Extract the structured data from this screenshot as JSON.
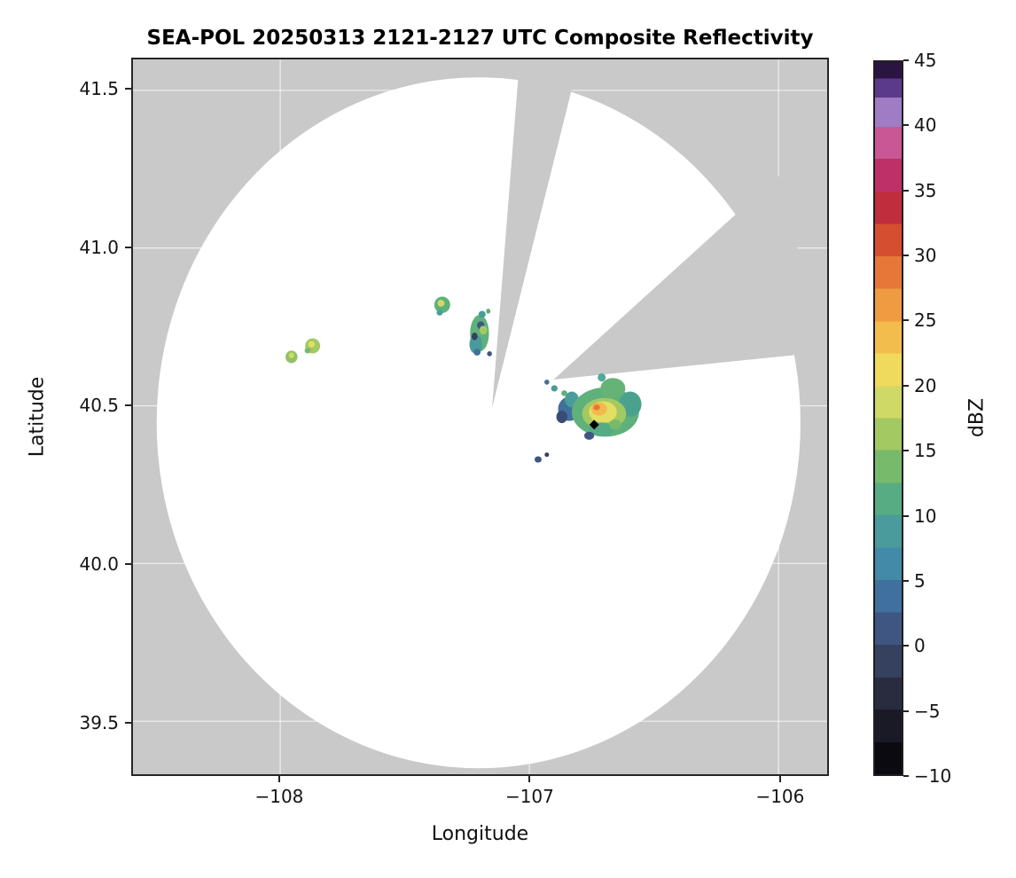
{
  "chart_data": {
    "type": "heatmap",
    "title": "SEA-POL 20250313 2121-2127 UTC Composite Reflectivity",
    "xlabel": "Longitude",
    "ylabel": "Latitude",
    "xlim": [
      -108.591,
      -105.805
    ],
    "ylim": [
      39.332,
      41.598
    ],
    "xticks": [
      -108,
      -107,
      -106
    ],
    "yticks": [
      39.5,
      40.0,
      40.5,
      41.0,
      41.5
    ],
    "grid": true,
    "grid_color": "#ffffff",
    "background_color": "#ffffff",
    "no_data_color": "#c9c9c9",
    "radar_coverage": {
      "center": [
        -107.204,
        40.446
      ],
      "radius_lon_deg": 1.292,
      "radius_lat_deg": 1.095
    },
    "blocked_sectors": [
      {
        "name": "blocked-sector-north",
        "polygon": [
          [
            -107.15,
            40.493
          ],
          [
            -107.037,
            41.62
          ],
          [
            -106.793,
            41.62
          ]
        ]
      },
      {
        "name": "blocked-sector-northeast",
        "polygon": [
          [
            -106.903,
            40.583
          ],
          [
            -106.0,
            41.23
          ],
          [
            -105.82,
            40.67
          ]
        ]
      }
    ],
    "site_marker": {
      "lon": -106.74,
      "lat": 40.44,
      "symbol": "diamond",
      "color": "#000000"
    },
    "colorbar": {
      "label": "dBZ",
      "min": -10,
      "max": 45,
      "ticks": [
        -10,
        -5,
        0,
        5,
        10,
        15,
        20,
        25,
        30,
        35,
        40,
        45
      ],
      "stops": [
        [
          0.0,
          "#0a0a10"
        ],
        [
          0.045,
          "#191a26"
        ],
        [
          0.091,
          "#292c3f"
        ],
        [
          0.136,
          "#36405f"
        ],
        [
          0.182,
          "#3f5682"
        ],
        [
          0.227,
          "#40709e"
        ],
        [
          0.273,
          "#428aa7"
        ],
        [
          0.318,
          "#499c9b"
        ],
        [
          0.364,
          "#58ac84"
        ],
        [
          0.409,
          "#77ba6c"
        ],
        [
          0.455,
          "#a3c963"
        ],
        [
          0.5,
          "#cfd966"
        ],
        [
          0.545,
          "#f0da5e"
        ],
        [
          0.591,
          "#f3bd4e"
        ],
        [
          0.636,
          "#ef9b42"
        ],
        [
          0.682,
          "#e67739"
        ],
        [
          0.727,
          "#d54e30"
        ],
        [
          0.773,
          "#c02e3d"
        ],
        [
          0.818,
          "#bd3168"
        ],
        [
          0.864,
          "#ca5795"
        ],
        [
          0.909,
          "#a07cc5"
        ],
        [
          0.95,
          "#5b3a8c"
        ],
        [
          0.977,
          "#2a1542"
        ]
      ]
    },
    "echoes": [
      {
        "lon": -106.84,
        "lat": 40.49,
        "rx": 0.045,
        "ry": 0.038,
        "color": "#41709d",
        "dbz": 5
      },
      {
        "lon": -106.87,
        "lat": 40.465,
        "rx": 0.022,
        "ry": 0.02,
        "color": "#3a4c74",
        "dbz": 0
      },
      {
        "lon": -106.83,
        "lat": 40.52,
        "rx": 0.028,
        "ry": 0.025,
        "color": "#499c9b",
        "dbz": 8
      },
      {
        "lon": -106.695,
        "lat": 40.48,
        "rx": 0.135,
        "ry": 0.078,
        "color": "#5fb07b",
        "dbz": 11
      },
      {
        "lon": -106.595,
        "lat": 40.505,
        "rx": 0.045,
        "ry": 0.04,
        "color": "#4aa18e",
        "dbz": 9
      },
      {
        "lon": -106.665,
        "lat": 40.555,
        "rx": 0.05,
        "ry": 0.033,
        "color": "#66b377",
        "dbz": 11
      },
      {
        "lon": -106.71,
        "lat": 40.59,
        "rx": 0.016,
        "ry": 0.013,
        "color": "#52a89a",
        "dbz": 9
      },
      {
        "lon": -106.7,
        "lat": 40.475,
        "rx": 0.088,
        "ry": 0.05,
        "color": "#a3c963",
        "dbz": 15
      },
      {
        "lon": -106.705,
        "lat": 40.48,
        "rx": 0.056,
        "ry": 0.034,
        "color": "#e2df64",
        "dbz": 18
      },
      {
        "lon": -106.72,
        "lat": 40.49,
        "rx": 0.032,
        "ry": 0.021,
        "color": "#f2b94d",
        "dbz": 22
      },
      {
        "lon": -106.73,
        "lat": 40.495,
        "rx": 0.013,
        "ry": 0.009,
        "color": "#e67739",
        "dbz": 26
      },
      {
        "lon": -106.71,
        "lat": 40.425,
        "rx": 0.05,
        "ry": 0.022,
        "color": "#55ab86",
        "dbz": 10
      },
      {
        "lon": -106.76,
        "lat": 40.405,
        "rx": 0.02,
        "ry": 0.013,
        "color": "#3f5682",
        "dbz": 1
      },
      {
        "lon": -106.655,
        "lat": 40.44,
        "rx": 0.025,
        "ry": 0.016,
        "color": "#77ba6c",
        "dbz": 12
      },
      {
        "lon": -106.9,
        "lat": 40.555,
        "rx": 0.013,
        "ry": 0.01,
        "color": "#499c9b",
        "dbz": 8
      },
      {
        "lon": -106.93,
        "lat": 40.575,
        "rx": 0.01,
        "ry": 0.008,
        "color": "#41709d",
        "dbz": 4
      },
      {
        "lon": -106.86,
        "lat": 40.54,
        "rx": 0.012,
        "ry": 0.009,
        "color": "#5fb07b",
        "dbz": 11
      },
      {
        "lon": -107.2,
        "lat": 40.73,
        "rx": 0.038,
        "ry": 0.058,
        "color": "#5fb07b",
        "dbz": 11
      },
      {
        "lon": -107.215,
        "lat": 40.695,
        "rx": 0.026,
        "ry": 0.03,
        "color": "#499c9b",
        "dbz": 8
      },
      {
        "lon": -107.195,
        "lat": 40.755,
        "rx": 0.015,
        "ry": 0.013,
        "color": "#3f5682",
        "dbz": 1
      },
      {
        "lon": -107.22,
        "lat": 40.72,
        "rx": 0.012,
        "ry": 0.012,
        "color": "#36405f",
        "dbz": -2
      },
      {
        "lon": -107.185,
        "lat": 40.74,
        "rx": 0.016,
        "ry": 0.014,
        "color": "#a3c963",
        "dbz": 15
      },
      {
        "lon": -107.21,
        "lat": 40.67,
        "rx": 0.014,
        "ry": 0.011,
        "color": "#41709d",
        "dbz": 4
      },
      {
        "lon": -107.19,
        "lat": 40.79,
        "rx": 0.014,
        "ry": 0.011,
        "color": "#499c9b",
        "dbz": 8
      },
      {
        "lon": -107.165,
        "lat": 40.8,
        "rx": 0.009,
        "ry": 0.008,
        "color": "#5fb07b",
        "dbz": 11
      },
      {
        "lon": -107.16,
        "lat": 40.665,
        "rx": 0.01,
        "ry": 0.008,
        "color": "#3f5682",
        "dbz": 1
      },
      {
        "lon": -107.35,
        "lat": 40.82,
        "rx": 0.032,
        "ry": 0.026,
        "color": "#5fb07b",
        "dbz": 11
      },
      {
        "lon": -107.355,
        "lat": 40.825,
        "rx": 0.014,
        "ry": 0.011,
        "color": "#cfd966",
        "dbz": 17
      },
      {
        "lon": -107.36,
        "lat": 40.795,
        "rx": 0.012,
        "ry": 0.009,
        "color": "#499c9b",
        "dbz": 8
      },
      {
        "lon": -107.955,
        "lat": 40.655,
        "rx": 0.024,
        "ry": 0.02,
        "color": "#8fc167",
        "dbz": 13
      },
      {
        "lon": -107.955,
        "lat": 40.66,
        "rx": 0.011,
        "ry": 0.009,
        "color": "#cfd966",
        "dbz": 17
      },
      {
        "lon": -107.87,
        "lat": 40.69,
        "rx": 0.03,
        "ry": 0.024,
        "color": "#a3c963",
        "dbz": 15
      },
      {
        "lon": -107.875,
        "lat": 40.695,
        "rx": 0.013,
        "ry": 0.01,
        "color": "#e2df64",
        "dbz": 18
      },
      {
        "lon": -107.89,
        "lat": 40.675,
        "rx": 0.012,
        "ry": 0.009,
        "color": "#77ba6c",
        "dbz": 12
      },
      {
        "lon": -106.965,
        "lat": 40.33,
        "rx": 0.014,
        "ry": 0.01,
        "color": "#3f5682",
        "dbz": 1
      },
      {
        "lon": -106.93,
        "lat": 40.345,
        "rx": 0.009,
        "ry": 0.007,
        "color": "#36405f",
        "dbz": -2
      }
    ]
  }
}
